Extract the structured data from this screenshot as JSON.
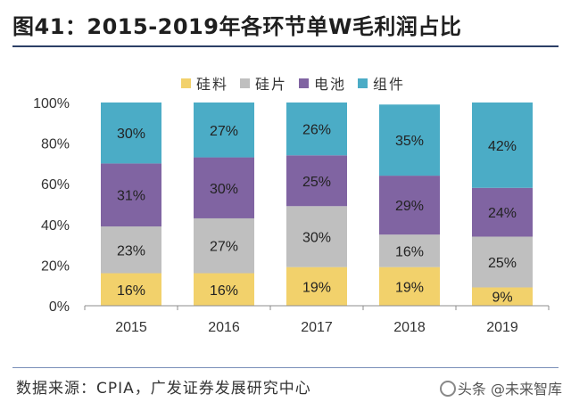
{
  "figure": {
    "title": "图41：2015-2019年各环节单W毛利润占比",
    "source": "数据来源：CPIA，广发证券发展研究中心",
    "watermark": "头条 @未来智库"
  },
  "chart_data": {
    "type": "bar",
    "stacked": true,
    "title": "图41：2015-2019年各环节单W毛利润占比",
    "categories": [
      "2015",
      "2016",
      "2017",
      "2018",
      "2019"
    ],
    "series": [
      {
        "name": "硅料",
        "values": [
          16,
          16,
          19,
          19,
          9
        ],
        "color": "#f2d16b"
      },
      {
        "name": "硅片",
        "values": [
          23,
          27,
          30,
          16,
          25
        ],
        "color": "#bfbfbf"
      },
      {
        "name": "电池",
        "values": [
          31,
          30,
          25,
          29,
          24
        ],
        "color": "#8064a2"
      },
      {
        "name": "组件",
        "values": [
          30,
          27,
          26,
          35,
          42
        ],
        "color": "#4bacc6"
      }
    ],
    "data_labels": [
      [
        "16%",
        "16%",
        "19%",
        "19%",
        "9%"
      ],
      [
        "23%",
        "27%",
        "30%",
        "16%",
        "25%"
      ],
      [
        "31%",
        "30%",
        "25%",
        "29%",
        "24%"
      ],
      [
        "30%",
        "27%",
        "26%",
        "35%",
        "42%"
      ]
    ],
    "yticks": [
      "0%",
      "20%",
      "40%",
      "60%",
      "80%",
      "100%"
    ],
    "ylim": [
      0,
      100
    ],
    "xlabel": "",
    "ylabel": "",
    "legend_position": "top-center"
  }
}
